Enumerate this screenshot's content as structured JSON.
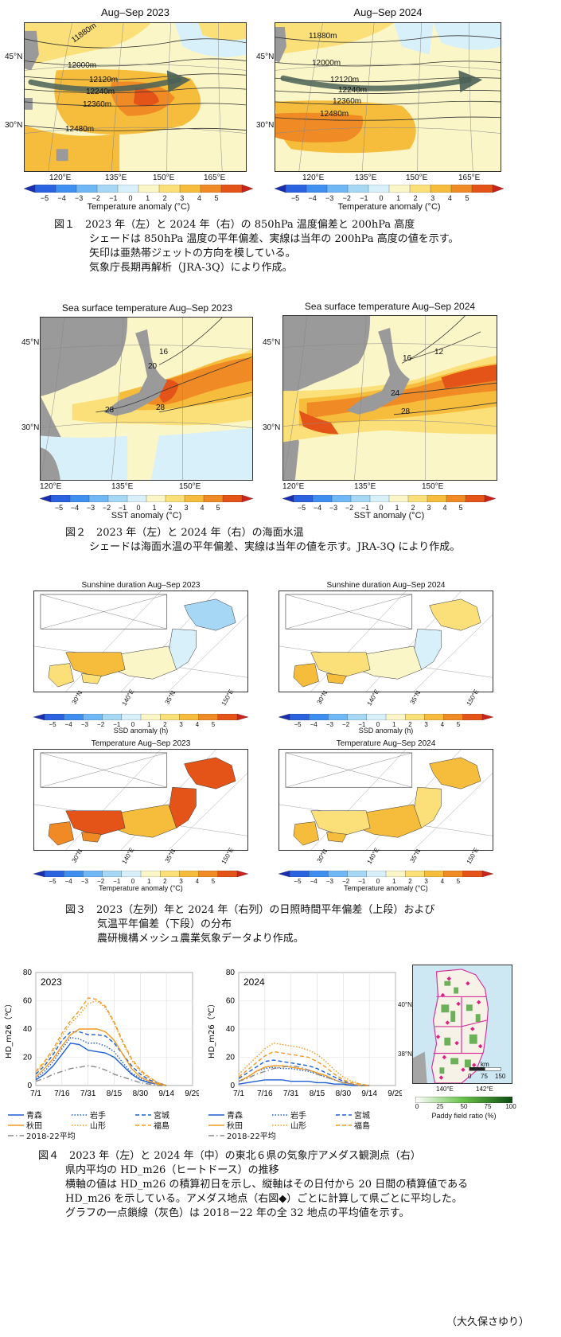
{
  "figure1": {
    "left_title": "Aug–Sep 2023",
    "right_title": "Aug–Sep 2024",
    "lat_labels": [
      "45°N",
      "30°N"
    ],
    "lon_labels": [
      "120°E",
      "135°E",
      "150°E",
      "165°E"
    ],
    "contours_left": [
      "11880m",
      "12000m",
      "12120m",
      "12240m",
      "12360m",
      "12480m"
    ],
    "contours_right": [
      "11880m",
      "12000m",
      "12120m",
      "12240m",
      "12360m",
      "12480m"
    ],
    "colorbar_label": "Temperature anomaly (°C)",
    "colorbar_ticks": [
      "−5",
      "−4",
      "−3",
      "−2",
      "−1",
      "0",
      "1",
      "2",
      "3",
      "4",
      "5"
    ],
    "caption_head": "図１　2023 年（左）と 2024 年（右）の 850hPa 温度偏差と 200hPa 高度",
    "caption_lines": [
      "シェードは 850hPa 温度の平年偏差、実線は当年の 200hPa 高度の値を示す。",
      "矢印は亜熱帯ジェットの方向を模している。",
      "気象庁長期再解析（JRA-3Q）により作成。"
    ]
  },
  "figure2": {
    "left_title": "Sea surface temperature Aug–Sep 2023",
    "right_title": "Sea surface temperature Aug–Sep 2024",
    "lat_labels": [
      "45°N",
      "30°N"
    ],
    "lon_labels": [
      "120°E",
      "135°E",
      "150°E"
    ],
    "contours_left": [
      "16",
      "20",
      "28",
      "28"
    ],
    "contours_right": [
      "16",
      "12",
      "24",
      "28"
    ],
    "colorbar_label": "SST anomaly (°C)",
    "colorbar_ticks": [
      "−5",
      "−4",
      "−3",
      "−2",
      "−1",
      "0",
      "1",
      "2",
      "3",
      "4",
      "5"
    ],
    "caption_head": "図２　2023 年（左）と 2024 年（右）の海面水温",
    "caption_lines": [
      "シェードは海面水温の平年偏差、実線は当年の値を示す。JRA-3Q により作成。"
    ]
  },
  "figure3": {
    "titles": [
      "Sunshine duration Aug–Sep 2023",
      "Sunshine duration Aug–Sep 2024",
      "Temperature Aug–Sep 2023",
      "Temperature Aug–Sep 2024"
    ],
    "grid_labels": [
      "30°N",
      "140°E",
      "35°N",
      "150°E"
    ],
    "ssd_label": "SSD anomaly (h)",
    "temp_label": "Temperature anomaly (°C)",
    "colorbar_ticks": [
      "−5",
      "−4",
      "−3",
      "−2",
      "−1",
      "0",
      "1",
      "2",
      "3",
      "4",
      "5"
    ],
    "caption_head": "図３　2023（左列）年と 2024 年（右列）の日照時間平年偏差（上段）および",
    "caption_lines": [
      "気温平年偏差（下段）の分布",
      "農研機構メッシュ農業気象データより作成。"
    ]
  },
  "figure4": {
    "chart_data": [
      {
        "type": "line",
        "title": "2023",
        "ylabel": "HD_m26（℃）",
        "ylim": [
          0,
          80
        ],
        "yticks": [
          0,
          20,
          40,
          60,
          80
        ],
        "xticks": [
          "7/1",
          "7/16",
          "7/31",
          "8/15",
          "8/30",
          "9/14",
          "9/29"
        ],
        "x": [
          "7/1",
          "7/6",
          "7/11",
          "7/16",
          "7/21",
          "7/26",
          "7/31",
          "8/5",
          "8/10",
          "8/15",
          "8/20",
          "8/25",
          "8/30",
          "9/4",
          "9/9",
          "9/14"
        ],
        "series": [
          {
            "name": "青森",
            "color": "#1f5fd6",
            "dash": "solid",
            "values": [
              4,
              8,
              14,
              22,
              30,
              29,
              25,
              24,
              23,
              20,
              14,
              8,
              4,
              2,
              1,
              0
            ]
          },
          {
            "name": "岩手",
            "color": "#1f5fd6",
            "dash": "dot",
            "values": [
              5,
              10,
              17,
              26,
              34,
              33,
              30,
              30,
              28,
              24,
              16,
              9,
              5,
              2,
              1,
              0
            ]
          },
          {
            "name": "宮城",
            "color": "#1f5fd6",
            "dash": "dash",
            "values": [
              8,
              14,
              22,
              32,
              38,
              38,
              36,
              36,
              35,
              30,
              22,
              14,
              8,
              4,
              2,
              0
            ]
          },
          {
            "name": "秋田",
            "color": "#f39a1e",
            "dash": "solid",
            "values": [
              6,
              12,
              19,
              28,
              36,
              40,
              40,
              40,
              38,
              32,
              22,
              12,
              6,
              3,
              1,
              0
            ]
          },
          {
            "name": "山形",
            "color": "#f39a1e",
            "dash": "dot",
            "values": [
              9,
              16,
              24,
              35,
              44,
              50,
              58,
              60,
              55,
              44,
              30,
              18,
              10,
              5,
              2,
              0
            ]
          },
          {
            "name": "福島",
            "color": "#f39a1e",
            "dash": "dash",
            "values": [
              10,
              17,
              26,
              37,
              46,
              53,
              62,
              61,
              56,
              45,
              31,
              19,
              11,
              6,
              2,
              0
            ]
          },
          {
            "name": "2018-22平均",
            "color": "#8a8a8a",
            "dash": "dashdot",
            "values": [
              3,
              5,
              8,
              10,
              12,
              13,
              14,
              13,
              11,
              8,
              6,
              4,
              2,
              1,
              0,
              0
            ]
          }
        ]
      },
      {
        "type": "line",
        "title": "2024",
        "ylabel": "HD_m26（℃）",
        "ylim": [
          0,
          80
        ],
        "yticks": [
          0,
          20,
          40,
          60,
          80
        ],
        "xticks": [
          "7/1",
          "7/16",
          "7/31",
          "8/15",
          "8/30",
          "9/14",
          "9/29"
        ],
        "x": [
          "7/1",
          "7/6",
          "7/11",
          "7/16",
          "7/21",
          "7/26",
          "7/31",
          "8/5",
          "8/10",
          "8/15",
          "8/20",
          "8/25",
          "8/30",
          "9/4",
          "9/9",
          "9/14"
        ],
        "series": [
          {
            "name": "青森",
            "color": "#1f5fd6",
            "dash": "solid",
            "values": [
              1,
              2,
              3,
              4,
              4,
              4,
              3,
              3,
              3,
              2,
              2,
              1,
              1,
              0,
              0,
              0
            ]
          },
          {
            "name": "岩手",
            "color": "#1f5fd6",
            "dash": "dot",
            "values": [
              3,
              6,
              10,
              12,
              13,
              12,
              12,
              11,
              10,
              8,
              6,
              4,
              2,
              1,
              0,
              0
            ]
          },
          {
            "name": "宮城",
            "color": "#1f5fd6",
            "dash": "dash",
            "values": [
              5,
              9,
              13,
              17,
              18,
              17,
              16,
              15,
              14,
              12,
              9,
              6,
              3,
              1,
              0,
              0
            ]
          },
          {
            "name": "秋田",
            "color": "#f39a1e",
            "dash": "solid",
            "values": [
              3,
              6,
              10,
              13,
              14,
              14,
              13,
              12,
              11,
              9,
              7,
              4,
              2,
              1,
              0,
              0
            ]
          },
          {
            "name": "山形",
            "color": "#f39a1e",
            "dash": "dot",
            "values": [
              8,
              14,
              20,
              26,
              30,
              29,
              28,
              27,
              25,
              22,
              17,
              11,
              6,
              3,
              1,
              0
            ]
          },
          {
            "name": "福島",
            "color": "#f39a1e",
            "dash": "dash",
            "values": [
              6,
              11,
              16,
              21,
              24,
              23,
              22,
              21,
              20,
              17,
              13,
              8,
              4,
              2,
              1,
              0
            ]
          },
          {
            "name": "2018-22平均",
            "color": "#8a8a8a",
            "dash": "dashdot",
            "values": [
              3,
              5,
              8,
              10,
              12,
              13,
              14,
              13,
              11,
              8,
              6,
              4,
              2,
              1,
              0,
              0
            ]
          }
        ]
      }
    ],
    "legend": [
      "青森",
      "岩手",
      "宮城",
      "秋田",
      "山形",
      "福島",
      "2018-22平均"
    ],
    "map_lat_labels": [
      "40°N",
      "38°N"
    ],
    "map_lon_labels": [
      "140°E",
      "142°E"
    ],
    "map_scale_label": "km",
    "map_scale_ticks": [
      "0",
      "75",
      "150"
    ],
    "paddy_ticks": [
      "0",
      "25",
      "50",
      "75",
      "100"
    ],
    "paddy_label": "Paddy field ratio (%)",
    "caption_head": "図４　2023 年（左）と 2024 年（中）の東北６県の気象庁アメダス観測点（右）",
    "caption_lines": [
      "県内平均の HD_m26（ヒートドース）の推移",
      "横軸の値は HD_m26 の積算初日を示し、縦軸はその日付から 20 日間の積算値である",
      "HD_m26 を示している。アメダス地点（右図◆）ごとに計算して県ごとに平均した。",
      "グラフの一点鎖線（灰色）は 2018－22 年の全 32 地点の平均値を示す。"
    ]
  },
  "author": "（大久保さゆり）",
  "palette": {
    "anomaly": [
      "#1a2fb0",
      "#2a62e0",
      "#3f8ff0",
      "#6fb8f5",
      "#a6d8f6",
      "#d8f0fa",
      "#fbf6c8",
      "#fbe07a",
      "#f6bc3c",
      "#ef8a24",
      "#e45419",
      "#c9231a"
    ]
  }
}
